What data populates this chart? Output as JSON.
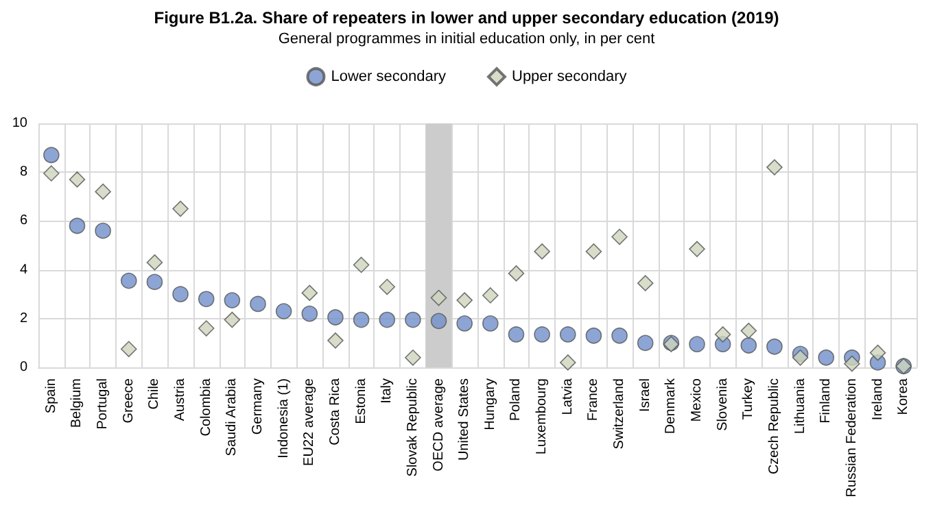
{
  "chart_data": {
    "type": "scatter",
    "title": "Figure B1.2a. Share of repeaters in lower and upper secondary education (2019)",
    "subtitle": "General programmes in initial education only, in per cent",
    "categories": [
      "Spain",
      "Belgium",
      "Portugal",
      "Greece",
      "Chile",
      "Austria",
      "Colombia",
      "Saudi Arabia",
      "Germany",
      "Indonesia (1)",
      "EU22 average",
      "Costa Rica",
      "Estonia",
      "Italy",
      "Slovak Republic",
      "OECD average",
      "United States",
      "Hungary",
      "Poland",
      "Luxembourg",
      "Latvia",
      "France",
      "Switzerland",
      "Israel",
      "Denmark",
      "Mexico",
      "Slovenia",
      "Turkey",
      "Czech Republic",
      "Lithuania",
      "Finland",
      "Russian Federation",
      "Ireland",
      "Korea"
    ],
    "series": [
      {
        "name": "Lower secondary",
        "color": "#6f8fc9",
        "marker": "circle",
        "values": [
          8.7,
          5.8,
          5.6,
          3.55,
          3.5,
          3.0,
          2.8,
          2.75,
          2.6,
          2.3,
          2.2,
          2.05,
          1.95,
          1.95,
          1.95,
          1.9,
          1.8,
          1.8,
          1.35,
          1.35,
          1.35,
          1.3,
          1.3,
          1.0,
          1.0,
          0.95,
          0.95,
          0.9,
          0.85,
          0.55,
          0.4,
          0.4,
          0.2,
          0.05
        ]
      },
      {
        "name": "Upper secondary",
        "color": "#cdd5bb",
        "marker": "diamond",
        "values": [
          7.95,
          7.7,
          7.2,
          0.75,
          4.3,
          6.5,
          1.6,
          1.95,
          null,
          null,
          3.05,
          1.1,
          4.2,
          3.3,
          0.4,
          2.85,
          2.75,
          2.95,
          3.85,
          4.75,
          0.2,
          4.75,
          5.35,
          3.45,
          0.95,
          4.85,
          1.35,
          1.5,
          8.2,
          0.4,
          null,
          0.15,
          0.6,
          0.05
        ]
      }
    ],
    "ylim": [
      0,
      10
    ],
    "yticks": [
      0,
      2,
      4,
      6,
      8,
      10
    ],
    "grid": true,
    "legend": "top",
    "bands": [
      {
        "axis": "x",
        "from": "OECD average",
        "to": "OECD average",
        "color": "#cccccc"
      }
    ]
  }
}
